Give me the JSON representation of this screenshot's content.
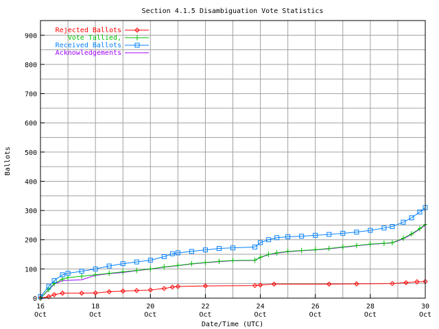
{
  "chart_data": {
    "type": "line",
    "title": "Section 4.1.5 Disambiguation Vote Statistics",
    "xlabel": "Date/Time (UTC)",
    "ylabel": "Ballots",
    "xlim": [
      16,
      30
    ],
    "ylim": [
      0,
      950
    ],
    "x_ticks": [
      {
        "v": 16,
        "l1": "16",
        "l2": "Oct"
      },
      {
        "v": 18,
        "l1": "18",
        "l2": "Oct"
      },
      {
        "v": 20,
        "l1": "20",
        "l2": "Oct"
      },
      {
        "v": 22,
        "l1": "22",
        "l2": "Oct"
      },
      {
        "v": 24,
        "l1": "24",
        "l2": "Oct"
      },
      {
        "v": 26,
        "l1": "26",
        "l2": "Oct"
      },
      {
        "v": 28,
        "l1": "28",
        "l2": "Oct"
      },
      {
        "v": 30,
        "l1": "30",
        "l2": "Oct"
      }
    ],
    "y_ticks": [
      0,
      100,
      200,
      300,
      400,
      500,
      600,
      700,
      800,
      900
    ],
    "grid": true,
    "legend_position": "top-left",
    "series": [
      {
        "name": "Rejected Ballots",
        "color": "#ff0000",
        "marker": "diamond",
        "x": [
          16,
          16.3,
          16.5,
          16.8,
          17.5,
          18,
          18.5,
          19,
          19.5,
          20,
          20.5,
          20.8,
          21,
          22,
          23.8,
          24,
          24.5,
          26.5,
          27.5,
          28.8,
          29.3,
          29.7,
          30
        ],
        "y": [
          0,
          5,
          12,
          17,
          17,
          18,
          22,
          24,
          26,
          28,
          33,
          38,
          40,
          42,
          43,
          45,
          48,
          48,
          49,
          50,
          53,
          56,
          57
        ]
      },
      {
        "name": "Vote Tallied,",
        "color": "#00c000",
        "marker": "plus",
        "x": [
          16,
          16.3,
          16.5,
          16.8,
          17,
          17.5,
          18,
          18.5,
          19,
          19.5,
          20,
          20.5,
          21,
          21.5,
          22,
          22.5,
          23,
          23.8,
          24,
          24.3,
          24.6,
          25,
          25.5,
          26,
          26.5,
          27,
          27.5,
          28,
          28.5,
          28.8,
          29.2,
          29.5,
          29.8,
          30
        ],
        "y": [
          0,
          30,
          50,
          65,
          70,
          75,
          80,
          85,
          90,
          95,
          100,
          107,
          112,
          118,
          122,
          126,
          129,
          130,
          140,
          150,
          155,
          160,
          163,
          166,
          170,
          175,
          180,
          185,
          188,
          190,
          205,
          220,
          238,
          252
        ]
      },
      {
        "name": "Received Ballots",
        "color": "#0080ff",
        "marker": "square",
        "x": [
          16,
          16.3,
          16.5,
          16.8,
          17,
          17.5,
          18,
          18.5,
          19,
          19.5,
          20,
          20.5,
          20.8,
          21,
          21.5,
          22,
          22.5,
          23,
          23.8,
          24,
          24.3,
          24.6,
          25,
          25.5,
          26,
          26.5,
          27,
          27.5,
          28,
          28.5,
          28.8,
          29.2,
          29.5,
          29.8,
          30
        ],
        "y": [
          5,
          40,
          60,
          80,
          85,
          92,
          100,
          110,
          118,
          124,
          130,
          142,
          152,
          155,
          160,
          165,
          170,
          172,
          175,
          190,
          200,
          207,
          210,
          212,
          215,
          218,
          222,
          226,
          232,
          240,
          245,
          260,
          275,
          295,
          310
        ]
      },
      {
        "name": "Acknowledgements",
        "color": "#a000ff",
        "marker": "none",
        "x": [
          16,
          16.3,
          16.5,
          16.8,
          17.5,
          18,
          18.5,
          19,
          19.5,
          20,
          20.5,
          21,
          21.5,
          22,
          22.5,
          23,
          23.8,
          24,
          24.3,
          24.6,
          25,
          25.5,
          26,
          26.5,
          27,
          27.5,
          28,
          28.5,
          28.8,
          29.2,
          29.5,
          29.8,
          30
        ],
        "y": [
          0,
          28,
          48,
          60,
          63,
          78,
          84,
          88,
          94,
          99,
          106,
          111,
          117,
          121,
          125,
          128,
          129,
          139,
          149,
          154,
          159,
          162,
          165,
          169,
          174,
          179,
          184,
          187,
          189,
          203,
          218,
          236,
          250
        ]
      }
    ]
  }
}
